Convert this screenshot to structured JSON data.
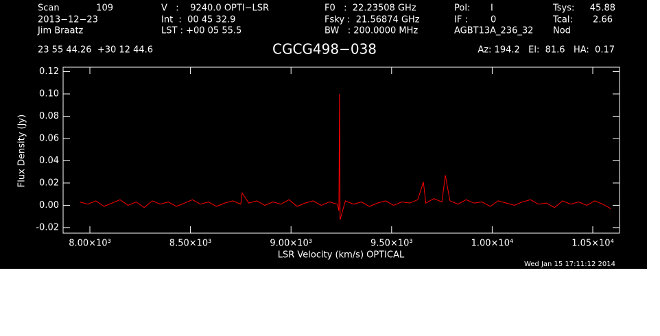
{
  "chart_data": {
    "type": "line",
    "title": "CGCG498−038",
    "header": {
      "scan_label": "Scan",
      "scan": "109",
      "date": "2013−12−23",
      "observer": "Jim Braatz",
      "v": "V   :    9240.0 OPTI−LSR",
      "int": "Int  :  00 45 32.9",
      "lst": "LST : +00 05 55.5",
      "f0": "F0   :  22.23508 GHz",
      "fsky": "Fsky :  21.56874 GHz",
      "bw": "BW   : 200.0000 MHz",
      "pol_label": "Pol:",
      "pol": "I",
      "if_label": "IF :",
      "if": "0",
      "project": "AGBT13A_236_32",
      "tsys_label": "Tsys:",
      "tsys": "45.88",
      "tcal_label": "Tcal:",
      "tcal": "2.66",
      "proc": "Nod",
      "coords": "23 55 44.26  +30 12 44.6",
      "azel": "Az: 194.2   El:  81.6   HA:  0.17",
      "timestamp": "Wed Jan 15 17:11:12 2014"
    },
    "x_label": "LSR Velocity (km/s) OPTICAL",
    "y_label": "Flux Density (Jy)",
    "color": "#ff0000",
    "x": [
      7950,
      7990,
      8030,
      8070,
      8110,
      8150,
      8190,
      8230,
      8270,
      8310,
      8350,
      8390,
      8430,
      8470,
      8510,
      8550,
      8590,
      8630,
      8670,
      8710,
      8750,
      8757,
      8790,
      8830,
      8870,
      8910,
      8950,
      8990,
      9030,
      9070,
      9110,
      9150,
      9190,
      9230,
      9238,
      9241,
      9244,
      9270,
      9310,
      9350,
      9390,
      9430,
      9470,
      9510,
      9550,
      9590,
      9630,
      9658,
      9670,
      9710,
      9750,
      9767,
      9790,
      9830,
      9870,
      9910,
      9950,
      9990,
      10030,
      10070,
      10110,
      10150,
      10190,
      10230,
      10270,
      10310,
      10350,
      10390,
      10430,
      10470,
      10510,
      10550,
      10590
    ],
    "values": [
      0.003,
      0.001,
      0.004,
      -0.001,
      0.002,
      0.005,
      0.0,
      0.003,
      -0.002,
      0.004,
      0.001,
      0.003,
      -0.001,
      0.002,
      0.005,
      0.001,
      0.003,
      -0.001,
      0.002,
      0.004,
      0.001,
      0.011,
      0.002,
      0.004,
      0.0,
      0.003,
      0.001,
      0.005,
      -0.001,
      0.002,
      0.004,
      0.0,
      0.003,
      0.001,
      -0.005,
      0.1,
      -0.013,
      0.004,
      0.001,
      0.003,
      -0.001,
      0.002,
      0.004,
      0.0,
      0.003,
      0.002,
      0.005,
      0.021,
      0.002,
      0.006,
      0.003,
      0.027,
      0.004,
      0.001,
      0.005,
      0.002,
      0.003,
      -0.001,
      0.004,
      0.002,
      0.0,
      0.003,
      0.005,
      0.001,
      0.002,
      -0.002,
      0.004,
      0.001,
      0.003,
      0.0,
      0.004,
      0.001,
      -0.003
    ],
    "xlim": [
      7867,
      10633
    ],
    "ylim": [
      -0.025,
      0.124
    ],
    "xticks": [
      {
        "value": 8000,
        "label": "8.00×10³"
      },
      {
        "value": 8500,
        "label": "8.50×10³"
      },
      {
        "value": 9000,
        "label": "9.00×10³"
      },
      {
        "value": 9500,
        "label": "9.50×10³"
      },
      {
        "value": 10000,
        "label": "1.00×10⁴"
      },
      {
        "value": 10500,
        "label": "1.05×10⁴"
      }
    ],
    "yticks": [
      -0.02,
      {
        "value": 0,
        "label": "0.00"
      },
      0.02,
      0.04,
      0.06,
      0.08,
      {
        "value": 0.1,
        "label": "0.10"
      },
      0.12
    ]
  }
}
